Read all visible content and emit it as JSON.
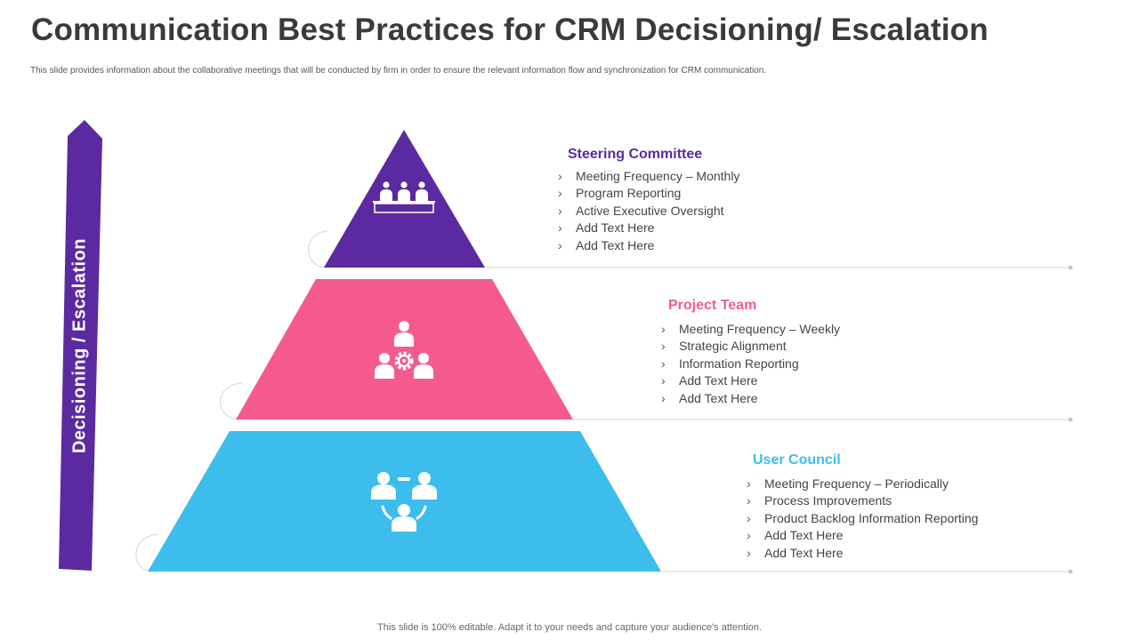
{
  "header": {
    "title": "Communication Best Practices for CRM Decisioning/ Escalation",
    "subtitle": "This slide provides information about the collaborative meetings that will be conducted by firm in order to ensure the relevant information flow and synchronization for CRM communication."
  },
  "arrow": {
    "label": "Decisioning / Escalation",
    "color": "#5b2aa0"
  },
  "tiers": [
    {
      "title": "Steering Committee",
      "color": "#5b2aa0",
      "icon": "meeting-table-icon",
      "items": [
        "Meeting Frequency – Monthly",
        "Program Reporting",
        "Active Executive Oversight",
        "Add Text Here",
        "Add Text Here"
      ]
    },
    {
      "title": "Project Team",
      "color": "#f45b8c",
      "icon": "team-gear-icon",
      "items": [
        "Meeting Frequency – Weekly",
        "Strategic Alignment",
        "Information  Reporting",
        "Add Text Here",
        "Add Text Here"
      ]
    },
    {
      "title": "User Council",
      "color": "#3cbdec",
      "icon": "group-discussion-icon",
      "items": [
        "Meeting Frequency – Periodically",
        "Process Improvements",
        "Product  Backlog Information  Reporting",
        "Add Text Here",
        "Add Text Here"
      ]
    }
  ],
  "footer": {
    "text": "This slide is 100% editable. Adapt it to your needs and capture your audience's attention."
  }
}
